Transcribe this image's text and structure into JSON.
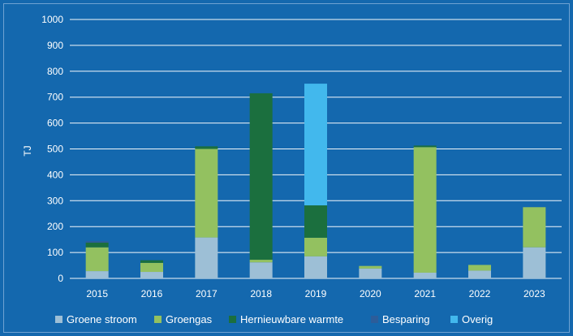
{
  "chart_data": {
    "type": "bar",
    "stacked": true,
    "title": "",
    "xlabel": "",
    "ylabel": "TJ",
    "ylim": [
      0,
      1000
    ],
    "yticks": [
      0,
      100,
      200,
      300,
      400,
      500,
      600,
      700,
      800,
      900,
      1000
    ],
    "grid": true,
    "legend_position": "bottom",
    "categories": [
      "2015",
      "2016",
      "2017",
      "2018",
      "2019",
      "2020",
      "2021",
      "2022",
      "2023"
    ],
    "series": [
      {
        "name": "Groene stroom",
        "color": "#9dbfd6",
        "values": [
          28,
          25,
          158,
          62,
          85,
          38,
          22,
          30,
          120
        ]
      },
      {
        "name": "Groengas",
        "color": "#93c160",
        "values": [
          92,
          35,
          342,
          10,
          72,
          10,
          485,
          22,
          155
        ]
      },
      {
        "name": "Hernieuwbare warmte",
        "color": "#1b6f3e",
        "values": [
          18,
          10,
          10,
          643,
          125,
          0,
          6,
          0,
          0
        ]
      },
      {
        "name": "Besparing",
        "color": "#2c5d9a",
        "values": [
          6,
          0,
          0,
          0,
          0,
          0,
          0,
          0,
          0
        ]
      },
      {
        "name": "Overig",
        "color": "#42b8ed",
        "values": [
          0,
          0,
          0,
          0,
          470,
          0,
          0,
          0,
          0
        ]
      }
    ]
  }
}
